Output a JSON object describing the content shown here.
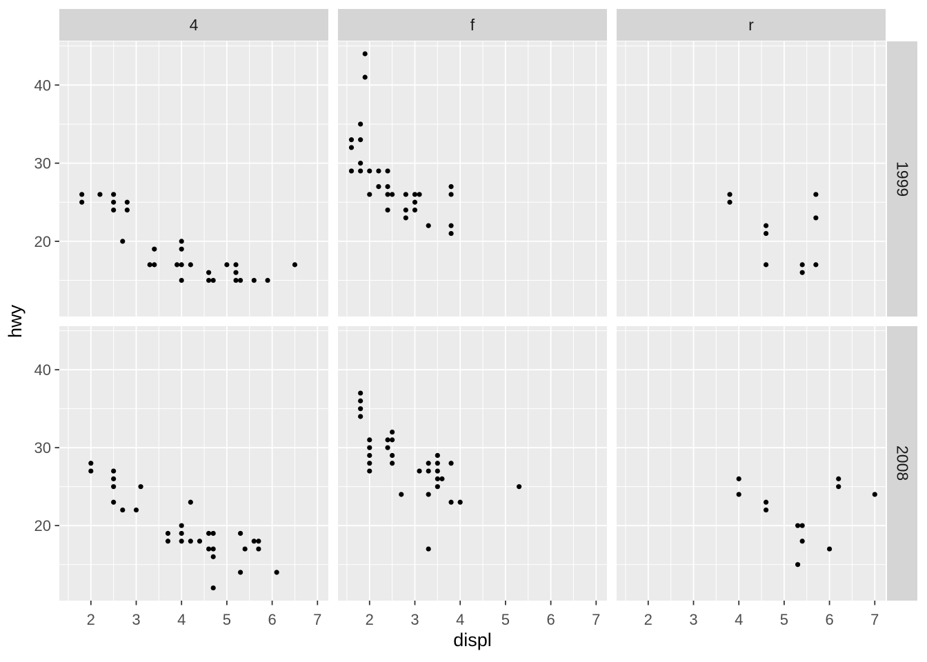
{
  "chart_data": {
    "type": "scatter",
    "title": "",
    "xlabel": "displ",
    "ylabel": "hwy",
    "facet_cols": [
      "4",
      "f",
      "r"
    ],
    "facet_rows": [
      "1999",
      "2008"
    ],
    "x_ticks": [
      2,
      3,
      4,
      5,
      6,
      7
    ],
    "y_ticks": [
      20,
      30,
      40
    ],
    "x_minor": [
      1.5,
      2.5,
      3.5,
      4.5,
      5.5,
      6.5
    ],
    "y_minor": [
      15,
      25,
      35,
      45
    ],
    "x_domain": [
      1.303,
      7.239
    ],
    "y_domain": [
      10.37,
      45.59
    ],
    "grid": "on",
    "legend": "none",
    "point_color": "#000000",
    "panel_bg": "#EBEBEB",
    "strip_bg": "#D5D5D5",
    "grid_color": "#FFFFFF",
    "tick_label_color": "#4D4D4D",
    "tick_mark_color": "#333333",
    "panels": [
      {
        "row": "1999",
        "col": "4",
        "points": [
          [
            1.8,
            26
          ],
          [
            1.8,
            25
          ],
          [
            2.2,
            26
          ],
          [
            2.5,
            26
          ],
          [
            2.5,
            25
          ],
          [
            2.5,
            24
          ],
          [
            2.8,
            25
          ],
          [
            2.8,
            24
          ],
          [
            2.7,
            20
          ],
          [
            3.4,
            19
          ],
          [
            3.3,
            17
          ],
          [
            3.4,
            17
          ],
          [
            3.9,
            17
          ],
          [
            4.0,
            20
          ],
          [
            4.0,
            19
          ],
          [
            4.0,
            17
          ],
          [
            4.0,
            15
          ],
          [
            4.2,
            17
          ],
          [
            4.6,
            16
          ],
          [
            4.6,
            15
          ],
          [
            4.7,
            15
          ],
          [
            5.0,
            17
          ],
          [
            5.2,
            17
          ],
          [
            5.2,
            16
          ],
          [
            5.2,
            15
          ],
          [
            5.3,
            15
          ],
          [
            5.6,
            15
          ],
          [
            5.9,
            15
          ],
          [
            6.5,
            17
          ]
        ]
      },
      {
        "row": "1999",
        "col": "f",
        "points": [
          [
            1.6,
            33
          ],
          [
            1.6,
            32
          ],
          [
            1.6,
            29
          ],
          [
            1.8,
            35
          ],
          [
            1.8,
            33
          ],
          [
            1.8,
            30
          ],
          [
            1.8,
            29
          ],
          [
            1.9,
            44
          ],
          [
            1.9,
            41
          ],
          [
            2.0,
            29
          ],
          [
            2.0,
            26
          ],
          [
            2.2,
            29
          ],
          [
            2.2,
            27
          ],
          [
            2.4,
            29
          ],
          [
            2.4,
            27
          ],
          [
            2.4,
            26
          ],
          [
            2.4,
            24
          ],
          [
            2.5,
            26
          ],
          [
            2.8,
            26
          ],
          [
            2.8,
            24
          ],
          [
            2.8,
            23
          ],
          [
            3.0,
            26
          ],
          [
            3.0,
            25
          ],
          [
            3.0,
            24
          ],
          [
            3.1,
            26
          ],
          [
            3.3,
            22
          ],
          [
            3.8,
            27
          ],
          [
            3.8,
            26
          ],
          [
            3.8,
            22
          ],
          [
            3.8,
            21
          ]
        ]
      },
      {
        "row": "1999",
        "col": "r",
        "points": [
          [
            3.8,
            26
          ],
          [
            3.8,
            25
          ],
          [
            4.6,
            22
          ],
          [
            4.6,
            21
          ],
          [
            4.6,
            17
          ],
          [
            5.4,
            17
          ],
          [
            5.4,
            16
          ],
          [
            5.7,
            26
          ],
          [
            5.7,
            23
          ],
          [
            5.7,
            17
          ]
        ]
      },
      {
        "row": "2008",
        "col": "4",
        "points": [
          [
            2.0,
            28
          ],
          [
            2.0,
            27
          ],
          [
            2.5,
            27
          ],
          [
            2.5,
            26
          ],
          [
            2.5,
            25
          ],
          [
            2.5,
            23
          ],
          [
            2.7,
            22
          ],
          [
            3.0,
            22
          ],
          [
            3.1,
            25
          ],
          [
            3.7,
            19
          ],
          [
            3.7,
            18
          ],
          [
            4.0,
            20
          ],
          [
            4.0,
            19
          ],
          [
            4.0,
            18
          ],
          [
            4.2,
            23
          ],
          [
            4.2,
            18
          ],
          [
            4.4,
            18
          ],
          [
            4.6,
            19
          ],
          [
            4.6,
            17
          ],
          [
            4.7,
            19
          ],
          [
            4.7,
            17
          ],
          [
            4.7,
            16
          ],
          [
            4.7,
            12
          ],
          [
            5.3,
            19
          ],
          [
            5.3,
            14
          ],
          [
            5.4,
            17
          ],
          [
            5.6,
            18
          ],
          [
            5.7,
            18
          ],
          [
            5.7,
            17
          ],
          [
            6.1,
            14
          ]
        ]
      },
      {
        "row": "2008",
        "col": "f",
        "points": [
          [
            1.8,
            37
          ],
          [
            1.8,
            36
          ],
          [
            1.8,
            35
          ],
          [
            1.8,
            34
          ],
          [
            2.0,
            31
          ],
          [
            2.0,
            30
          ],
          [
            2.0,
            29
          ],
          [
            2.0,
            28
          ],
          [
            2.0,
            27
          ],
          [
            2.4,
            31
          ],
          [
            2.4,
            30
          ],
          [
            2.5,
            32
          ],
          [
            2.5,
            31
          ],
          [
            2.5,
            29
          ],
          [
            2.5,
            28
          ],
          [
            2.7,
            24
          ],
          [
            3.1,
            27
          ],
          [
            3.3,
            28
          ],
          [
            3.3,
            27
          ],
          [
            3.3,
            24
          ],
          [
            3.3,
            17
          ],
          [
            3.5,
            29
          ],
          [
            3.5,
            28
          ],
          [
            3.5,
            27
          ],
          [
            3.5,
            26
          ],
          [
            3.5,
            25
          ],
          [
            3.6,
            26
          ],
          [
            3.8,
            28
          ],
          [
            3.8,
            23
          ],
          [
            4.0,
            23
          ],
          [
            5.3,
            25
          ]
        ]
      },
      {
        "row": "2008",
        "col": "r",
        "points": [
          [
            4.0,
            26
          ],
          [
            4.0,
            24
          ],
          [
            4.6,
            23
          ],
          [
            4.6,
            22
          ],
          [
            5.3,
            20
          ],
          [
            5.3,
            15
          ],
          [
            5.4,
            20
          ],
          [
            5.4,
            18
          ],
          [
            6.0,
            17
          ],
          [
            6.2,
            26
          ],
          [
            6.2,
            25
          ],
          [
            7.0,
            24
          ]
        ]
      }
    ]
  }
}
